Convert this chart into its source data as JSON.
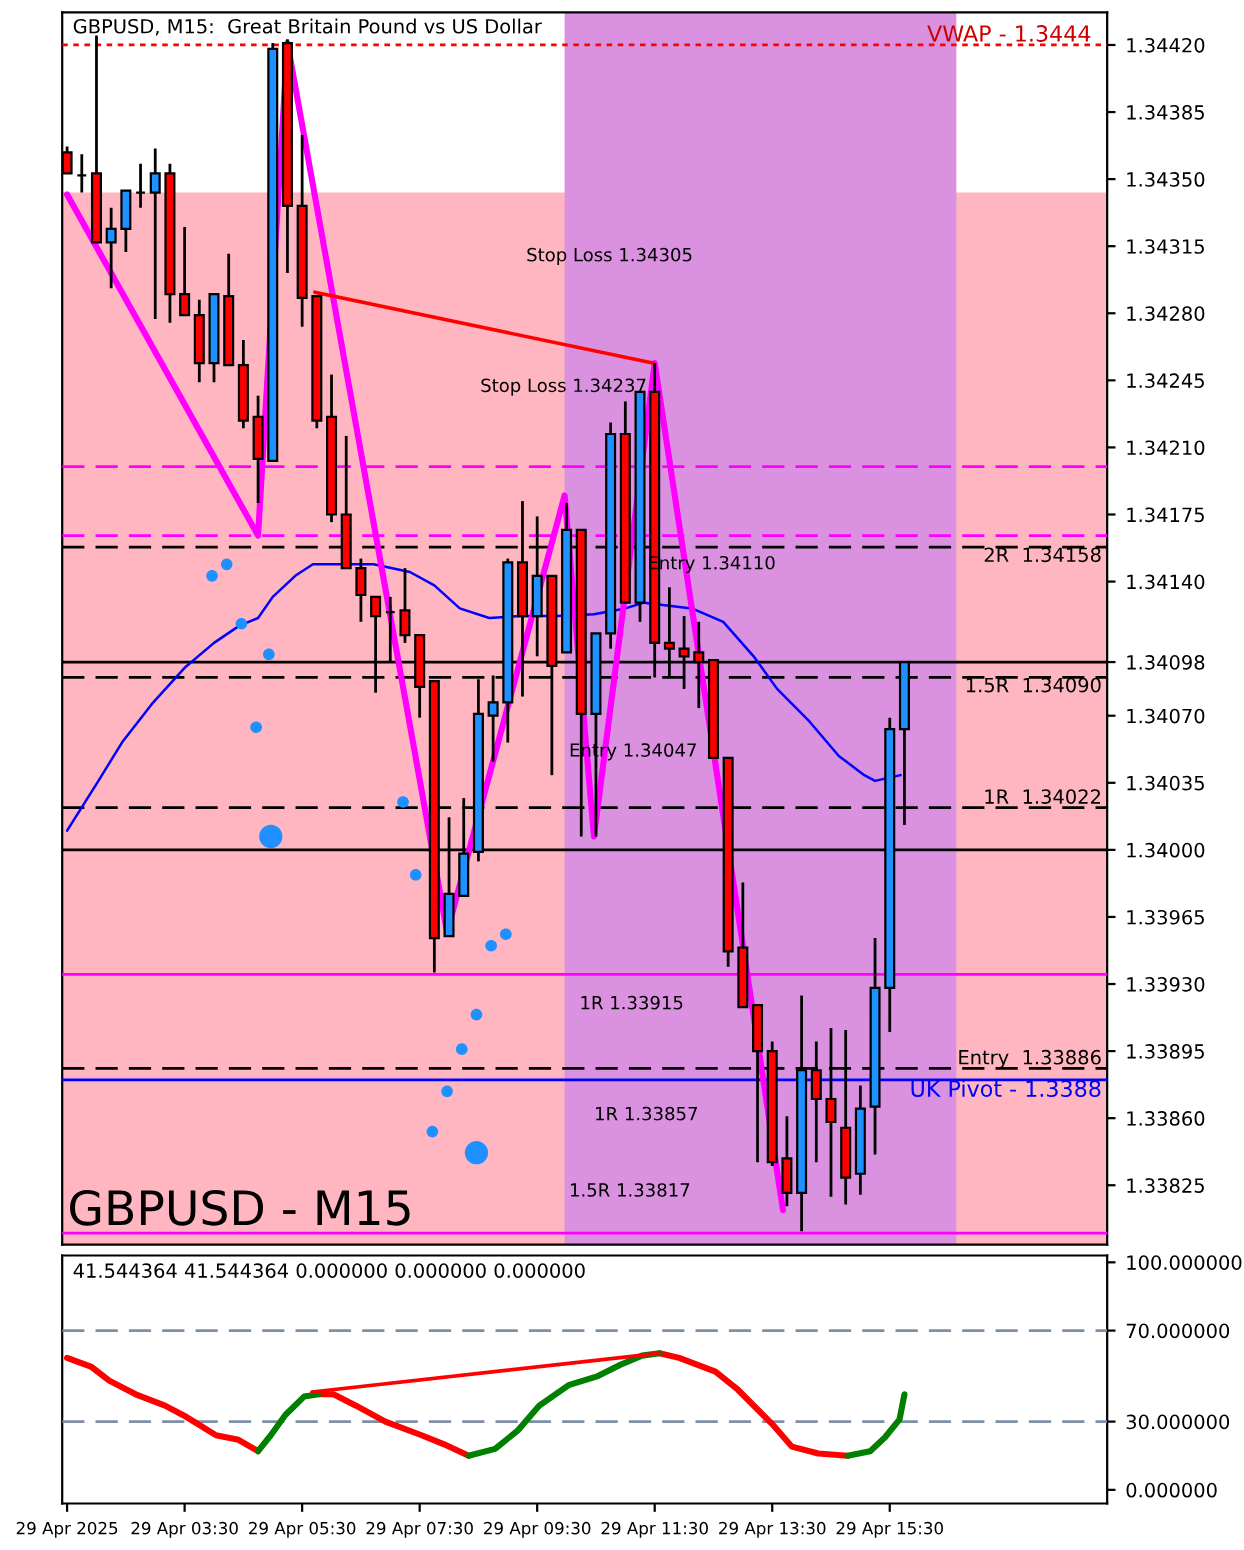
{
  "chart_data": [
    {
      "type": "candlestick",
      "title": "GBPUSD, M15:  Great Britain Pound vs US Dollar",
      "x": [
        "2025-04-29T01:30",
        "2025-04-29T01:45",
        "2025-04-29T02:00",
        "2025-04-29T02:15",
        "2025-04-29T02:30",
        "2025-04-29T02:45",
        "2025-04-29T03:00",
        "2025-04-29T03:15",
        "2025-04-29T03:30",
        "2025-04-29T03:45",
        "2025-04-29T04:00",
        "2025-04-29T04:15",
        "2025-04-29T04:30",
        "2025-04-29T04:45",
        "2025-04-29T05:00",
        "2025-04-29T05:15",
        "2025-04-29T05:30",
        "2025-04-29T05:45",
        "2025-04-29T06:00",
        "2025-04-29T06:15",
        "2025-04-29T06:30",
        "2025-04-29T06:45",
        "2025-04-29T07:00",
        "2025-04-29T07:15",
        "2025-04-29T07:30",
        "2025-04-29T07:45",
        "2025-04-29T08:00",
        "2025-04-29T08:15",
        "2025-04-29T08:30",
        "2025-04-29T08:45",
        "2025-04-29T09:00",
        "2025-04-29T09:15",
        "2025-04-29T09:30",
        "2025-04-29T09:45",
        "2025-04-29T10:00",
        "2025-04-29T10:15",
        "2025-04-29T10:30",
        "2025-04-29T10:45",
        "2025-04-29T11:00",
        "2025-04-29T11:15",
        "2025-04-29T11:30",
        "2025-04-29T11:45",
        "2025-04-29T12:00",
        "2025-04-29T12:15",
        "2025-04-29T12:30",
        "2025-04-29T12:45",
        "2025-04-29T13:00",
        "2025-04-29T13:15",
        "2025-04-29T13:30",
        "2025-04-29T13:45",
        "2025-04-29T14:00",
        "2025-04-29T14:15",
        "2025-04-29T14:30",
        "2025-04-29T14:45",
        "2025-04-29T15:00",
        "2025-04-29T15:15",
        "2025-04-29T15:30",
        "2025-04-29T15:45"
      ],
      "ohlc": [
        [
          1.34364,
          1.34367,
          1.34353,
          1.34353
        ],
        [
          1.34352,
          1.34363,
          1.34343,
          1.34352
        ],
        [
          1.34353,
          1.34425,
          1.34317,
          1.34317
        ],
        [
          1.34317,
          1.34335,
          1.34293,
          1.34324
        ],
        [
          1.34324,
          1.34344,
          1.34312,
          1.34344
        ],
        [
          1.34343,
          1.34358,
          1.34335,
          1.34343
        ],
        [
          1.34343,
          1.34366,
          1.34277,
          1.34353
        ],
        [
          1.34353,
          1.34358,
          1.34275,
          1.3429
        ],
        [
          1.3429,
          1.34325,
          1.34279,
          1.34279
        ],
        [
          1.34279,
          1.34287,
          1.34244,
          1.34254
        ],
        [
          1.34254,
          1.3429,
          1.34244,
          1.3429
        ],
        [
          1.34289,
          1.34311,
          1.34253,
          1.34253
        ],
        [
          1.34253,
          1.34266,
          1.3422,
          1.34224
        ],
        [
          1.34226,
          1.34237,
          1.34181,
          1.34204
        ],
        [
          1.34203,
          1.34421,
          1.34203,
          1.34418
        ],
        [
          1.34421,
          1.34423,
          1.34301,
          1.34336
        ],
        [
          1.34336,
          1.34373,
          1.34273,
          1.34288
        ],
        [
          1.34289,
          1.34289,
          1.3422,
          1.34224
        ],
        [
          1.34226,
          1.34248,
          1.34171,
          1.34175
        ],
        [
          1.34175,
          1.34216,
          1.34147,
          1.34147
        ],
        [
          1.34147,
          1.34152,
          1.34119,
          1.34133
        ],
        [
          1.34132,
          1.34132,
          1.34082,
          1.34122
        ],
        [
          1.34124,
          1.34132,
          1.34098,
          1.34124
        ],
        [
          1.34125,
          1.34147,
          1.34108,
          1.34112
        ],
        [
          1.34112,
          1.34112,
          1.34069,
          1.34085
        ],
        [
          1.34088,
          1.34088,
          1.33936,
          1.33954
        ],
        [
          1.33955,
          1.34017,
          1.33955,
          1.33977
        ],
        [
          1.33976,
          1.34027,
          1.33976,
          1.33998
        ],
        [
          1.33999,
          1.34089,
          1.33994,
          1.34071
        ],
        [
          1.3407,
          1.34091,
          1.34046,
          1.34077
        ],
        [
          1.34077,
          1.34152,
          1.34056,
          1.3415
        ],
        [
          1.3415,
          1.34182,
          1.3408,
          1.34122
        ],
        [
          1.34122,
          1.34174,
          1.34101,
          1.34143
        ],
        [
          1.34143,
          1.34143,
          1.34039,
          1.34096
        ],
        [
          1.34103,
          1.34181,
          1.34103,
          1.34167
        ],
        [
          1.34167,
          1.34167,
          1.34007,
          1.34071
        ],
        [
          1.34071,
          1.34113,
          1.34007,
          1.34113
        ],
        [
          1.34113,
          1.34223,
          1.34105,
          1.34217
        ],
        [
          1.34217,
          1.34234,
          1.34129,
          1.34129
        ],
        [
          1.34129,
          1.34239,
          1.34119,
          1.34239
        ],
        [
          1.34239,
          1.34254,
          1.3409,
          1.34108
        ],
        [
          1.34108,
          1.34137,
          1.3409,
          1.34105
        ],
        [
          1.34105,
          1.34122,
          1.34084,
          1.34101
        ],
        [
          1.34103,
          1.34119,
          1.34074,
          1.34098
        ],
        [
          1.34099,
          1.34099,
          1.34048,
          1.34048
        ],
        [
          1.34048,
          1.34048,
          1.33939,
          1.33947
        ],
        [
          1.33949,
          1.33983,
          1.33918,
          1.33918
        ],
        [
          1.33919,
          1.33919,
          1.33837,
          1.33895
        ],
        [
          1.33895,
          1.339,
          1.33835,
          1.33837
        ],
        [
          1.33839,
          1.33861,
          1.33814,
          1.33821
        ],
        [
          1.33821,
          1.33924,
          1.33801,
          1.33885
        ],
        [
          1.33885,
          1.339,
          1.33837,
          1.3387
        ],
        [
          1.3387,
          1.33907,
          1.33819,
          1.33858
        ],
        [
          1.33855,
          1.33906,
          1.33815,
          1.33829
        ],
        [
          1.33831,
          1.33877,
          1.3382,
          1.33865
        ],
        [
          1.33866,
          1.33954,
          1.33841,
          1.33928
        ],
        [
          1.33928,
          1.34069,
          1.33905,
          1.34063
        ],
        [
          1.34063,
          1.34098,
          1.34013,
          1.34098
        ]
      ],
      "colors": [
        "#ff0000",
        "#000000",
        "#ff0000",
        "#1e90ff",
        "#1e90ff",
        "#000000",
        "#1e90ff",
        "#ff0000",
        "#ff0000",
        "#ff0000",
        "#1e90ff",
        "#ff0000",
        "#ff0000",
        "#ff0000",
        "#1e90ff",
        "#ff0000",
        "#ff0000",
        "#ff0000",
        "#ff0000",
        "#ff0000",
        "#ff0000",
        "#ff0000",
        "#000000",
        "#ff0000",
        "#ff0000",
        "#ff0000",
        "#1e90ff",
        "#1e90ff",
        "#1e90ff",
        "#1e90ff",
        "#1e90ff",
        "#ff0000",
        "#1e90ff",
        "#ff0000",
        "#1e90ff",
        "#ff0000",
        "#1e90ff",
        "#1e90ff",
        "#ff0000",
        "#1e90ff",
        "#ff0000",
        "#ff0000",
        "#ff0000",
        "#ff0000",
        "#ff0000",
        "#ff0000",
        "#ff0000",
        "#ff0000",
        "#ff0000",
        "#ff0000",
        "#1e90ff",
        "#ff0000",
        "#ff0000",
        "#ff0000",
        "#1e90ff",
        "#1e90ff",
        "#1e90ff",
        "#1e90ff"
      ],
      "series": [
        {
          "type": "line",
          "color": "#0000ff",
          "x": [
            "2025-04-29T01:30",
            "2025-04-29T02:02",
            "2025-04-29T02:26",
            "2025-04-29T02:58",
            "2025-04-29T03:30",
            "2025-04-29T04:00",
            "2025-04-29T04:26",
            "2025-04-29T04:45",
            "2025-04-29T05:00",
            "2025-04-29T05:23",
            "2025-04-29T05:41",
            "2025-04-29T06:25",
            "2025-04-29T06:43",
            "2025-04-29T07:20",
            "2025-04-29T07:45",
            "2025-04-29T08:11",
            "2025-04-29T08:41",
            "2025-04-29T09:13",
            "2025-04-29T09:50",
            "2025-04-29T10:28",
            "2025-04-29T11:00",
            "2025-04-29T11:19",
            "2025-04-29T12:08",
            "2025-04-29T12:40",
            "2025-04-29T13:11",
            "2025-04-29T13:35",
            "2025-04-29T14:08",
            "2025-04-29T14:38",
            "2025-04-29T15:04",
            "2025-04-29T15:15",
            "2025-04-29T15:41"
          ],
          "values": [
            1.3401,
            1.34036,
            1.34056,
            1.34077,
            1.34095,
            1.34108,
            1.34117,
            1.34121,
            1.34132,
            1.34143,
            1.34149,
            1.34149,
            1.34149,
            1.34145,
            1.34138,
            1.34126,
            1.34121,
            1.34122,
            1.34122,
            1.34123,
            1.34126,
            1.34129,
            1.34126,
            1.34119,
            1.34101,
            1.34084,
            1.34067,
            1.34049,
            1.34039,
            1.34036,
            1.34039
          ]
        },
        {
          "type": "line",
          "color": "#ff00ff",
          "x": [
            "2025-04-29T01:30",
            "2025-04-29T04:45",
            "2025-04-29T05:15",
            "2025-04-29T07:58",
            "2025-04-29T09:58",
            "2025-04-29T10:28",
            "2025-04-29T11:30",
            "2025-04-29T13:41"
          ],
          "values": [
            1.34342,
            1.34164,
            1.34421,
            1.33957,
            1.34185,
            1.34007,
            1.34254,
            1.33812
          ]
        },
        {
          "type": "line",
          "color": "#ff0000",
          "x": [
            "2025-04-29T05:43",
            "2025-04-29T11:28"
          ],
          "values": [
            1.34291,
            1.34254
          ]
        },
        {
          "type": "bubble",
          "color": "#1e90ff",
          "x": [
            "2025-04-29T03:58",
            "2025-04-29T04:13",
            "2025-04-29T04:28",
            "2025-04-29T04:43",
            "2025-04-29T04:56",
            "2025-04-29T04:58",
            "2025-04-29T07:13",
            "2025-04-29T07:26",
            "2025-04-29T07:43",
            "2025-04-29T07:58",
            "2025-04-29T08:13",
            "2025-04-29T08:28",
            "2025-04-29T08:28",
            "2025-04-29T08:43",
            "2025-04-29T08:58"
          ],
          "values": [
            1.34143,
            1.34149,
            1.34118,
            1.34064,
            1.34102,
            1.34007,
            1.34025,
            1.33987,
            1.33853,
            1.33874,
            1.33896,
            1.33914,
            1.33842,
            1.3395,
            1.33956
          ],
          "sizes": [
            0.25,
            0.25,
            0.25,
            0.25,
            0.25,
            1,
            0.25,
            0.25,
            0.25,
            0.25,
            0.25,
            0.25,
            1,
            0.25,
            0.25
          ]
        }
      ],
      "xlim": [
        "2025-04-29T01:25",
        "2025-04-29T19:12"
      ],
      "ylim": [
        1.33794,
        1.34437
      ],
      "yticks": [
        {
          "value": 1.3442,
          "label": "1.34420"
        },
        {
          "value": 1.34385,
          "label": "1.34385"
        },
        {
          "value": 1.3435,
          "label": "1.34350"
        },
        {
          "value": 1.34315,
          "label": "1.34315"
        },
        {
          "value": 1.3428,
          "label": "1.34280"
        },
        {
          "value": 1.34245,
          "label": "1.34245"
        },
        {
          "value": 1.3421,
          "label": "1.34210"
        },
        {
          "value": 1.34175,
          "label": "1.34175"
        },
        {
          "value": 1.3414,
          "label": "1.34140"
        },
        {
          "value": 1.34098,
          "label": "1.34098"
        },
        {
          "value": 1.3407,
          "label": "1.34070"
        },
        {
          "value": 1.34035,
          "label": "1.34035"
        },
        {
          "value": 1.34,
          "label": "1.34000"
        },
        {
          "value": 1.33965,
          "label": "1.33965"
        },
        {
          "value": 1.3393,
          "label": "1.33930"
        },
        {
          "value": 1.33895,
          "label": "1.33895"
        },
        {
          "value": 1.3386,
          "label": "1.33860"
        },
        {
          "value": 1.33825,
          "label": "1.33825"
        }
      ],
      "tick_labels": "y",
      "bands": [
        {
          "axis": "y",
          "from": 1.33794,
          "to": 1.34343,
          "color": "#ffb6c1"
        },
        {
          "axis": "x",
          "from": "2025-04-29T09:58",
          "to": "2025-04-29T16:38",
          "color": "#da92e0"
        }
      ],
      "ref_lines": [
        {
          "axis": "y",
          "value": 1.34,
          "color": "#000000",
          "line_style": "solid"
        },
        {
          "axis": "y",
          "value": 1.34098,
          "color": "#000000",
          "line_style": "solid"
        },
        {
          "axis": "y",
          "value": 1.342,
          "color": "#ff00ff",
          "line_style": "dashed"
        },
        {
          "axis": "y",
          "value": 1.34164,
          "color": "#ff00ff",
          "line_style": "dashed"
        },
        {
          "axis": "y",
          "value": 1.34158,
          "label": "2R  1.34158",
          "color": "#000000",
          "line_style": "dashed"
        },
        {
          "axis": "y",
          "value": 1.3409,
          "label": "1.5R  1.34090",
          "color": "#000000",
          "line_style": "dashed"
        },
        {
          "axis": "y",
          "value": 1.34022,
          "label": "1R  1.34022",
          "color": "#000000",
          "line_style": "dashed"
        },
        {
          "axis": "y",
          "value": 1.33886,
          "label": "Entry  1.33886",
          "color": "#000000",
          "line_style": "dashed"
        },
        {
          "axis": "y",
          "value": 1.3388,
          "label": "UK Pivot - 1.3388",
          "color": "#0000ff",
          "line_style": "solid"
        },
        {
          "axis": "y",
          "value": 1.33935,
          "color": "#ff00ff",
          "line_style": "solid"
        },
        {
          "axis": "y",
          "value": 1.338,
          "color": "#ff00ff",
          "line_style": "solid"
        },
        {
          "axis": "y",
          "value": 1.3442,
          "color": "#ff0000",
          "line_style": "dotted"
        }
      ],
      "annotations": [
        "GBPUSD - M15",
        "VWAP - 1.3444",
        "Stop Loss 1.34305",
        "Stop Loss 1.34237",
        "Entry 1.34110",
        "Entry 1.34047",
        "1R 1.33915",
        "1R 1.33857",
        "1.5R 1.33817"
      ]
    },
    {
      "type": "line",
      "series": [
        {
          "color": "#ff0000",
          "x": [
            "2025-04-29T01:30",
            "2025-04-29T01:55",
            "2025-04-29T02:13",
            "2025-04-29T02:40",
            "2025-04-29T03:10",
            "2025-04-29T03:32",
            "2025-04-29T03:47",
            "2025-04-29T04:02",
            "2025-04-29T04:25",
            "2025-04-29T04:45",
            "2025-04-29T04:58",
            "2025-04-29T05:13",
            "2025-04-29T05:32",
            "2025-04-29T05:47",
            "2025-04-29T06:02",
            "2025-04-29T06:25",
            "2025-04-29T06:55",
            "2025-04-29T07:32",
            "2025-04-29T07:55",
            "2025-04-29T08:20",
            "2025-04-29T08:47",
            "2025-04-29T09:10",
            "2025-04-29T09:32",
            "2025-04-29T10:02",
            "2025-04-29T10:32",
            "2025-04-29T10:55",
            "2025-04-29T11:17",
            "2025-04-29T11:35",
            "2025-04-29T11:55",
            "2025-04-29T12:32",
            "2025-04-29T12:55",
            "2025-04-29T13:32",
            "2025-04-29T13:50",
            "2025-04-29T14:17",
            "2025-04-29T14:47"
          ],
          "values": [
            58,
            54,
            48,
            42,
            37,
            32,
            28,
            24,
            22,
            17,
            null,
            null,
            null,
            42,
            42,
            37,
            30,
            24,
            20,
            15,
            null,
            null,
            null,
            null,
            null,
            null,
            null,
            60,
            58,
            52,
            44,
            28,
            19,
            16,
            15
          ]
        },
        {
          "color": "#008000",
          "x": [
            "2025-04-29T04:45",
            "2025-04-29T04:58",
            "2025-04-29T05:13",
            "2025-04-29T05:32",
            "2025-04-29T05:47",
            "2025-04-29T06:02",
            "2025-04-29T06:25",
            "2025-04-29T06:55",
            "2025-04-29T07:32",
            "2025-04-29T07:55",
            "2025-04-29T08:20",
            "2025-04-29T08:47",
            "2025-04-29T09:10",
            "2025-04-29T09:32",
            "2025-04-29T10:02",
            "2025-04-29T10:32",
            "2025-04-29T10:55",
            "2025-04-29T11:17",
            "2025-04-29T11:35",
            "2025-04-29T11:55",
            "2025-04-29T12:32",
            "2025-04-29T12:55",
            "2025-04-29T13:32",
            "2025-04-29T13:50",
            "2025-04-29T14:17",
            "2025-04-29T14:47",
            "2025-04-29T15:10",
            "2025-04-29T15:25",
            "2025-04-29T15:40",
            "2025-04-29T15:45"
          ],
          "values": [
            17,
            24,
            33,
            41,
            42,
            null,
            null,
            null,
            null,
            null,
            15,
            18,
            26,
            37,
            46,
            50,
            55,
            59,
            60,
            null,
            null,
            null,
            null,
            null,
            null,
            15,
            17,
            23,
            31,
            42
          ]
        },
        {
          "color": "#ff0000",
          "x": [
            "2025-04-29T05:40",
            "2025-04-29T11:34"
          ],
          "values": [
            43,
            60
          ]
        }
      ],
      "xlim": [
        "2025-04-29T01:25",
        "2025-04-29T19:12"
      ],
      "xticks": [
        {
          "value": "2025-04-29T01:30",
          "label": "29 Apr 2025"
        },
        {
          "value": "2025-04-29T03:30",
          "label": "29 Apr 03:30"
        },
        {
          "value": "2025-04-29T05:30",
          "label": "29 Apr 05:30"
        },
        {
          "value": "2025-04-29T07:30",
          "label": "29 Apr 07:30"
        },
        {
          "value": "2025-04-29T09:30",
          "label": "29 Apr 09:30"
        },
        {
          "value": "2025-04-29T11:30",
          "label": "29 Apr 11:30"
        },
        {
          "value": "2025-04-29T13:30",
          "label": "29 Apr 13:30"
        },
        {
          "value": "2025-04-29T15:30",
          "label": "29 Apr 15:30"
        }
      ],
      "ylim": [
        -6,
        103
      ],
      "yticks": [
        {
          "value": 100,
          "label": "100.000000"
        },
        {
          "value": 70,
          "label": "70.000000"
        },
        {
          "value": 30,
          "label": "30.000000"
        },
        {
          "value": 0,
          "label": "0.000000"
        }
      ],
      "ref_lines": [
        {
          "axis": "y",
          "value": 70,
          "color": "#7f8fa6",
          "line_style": "dashed"
        },
        {
          "axis": "y",
          "value": 30,
          "color": "#7f8fa6",
          "line_style": "dashed"
        }
      ],
      "annotations": [
        "41.544364 41.544364 0.000000 0.000000 0.000000"
      ]
    }
  ]
}
